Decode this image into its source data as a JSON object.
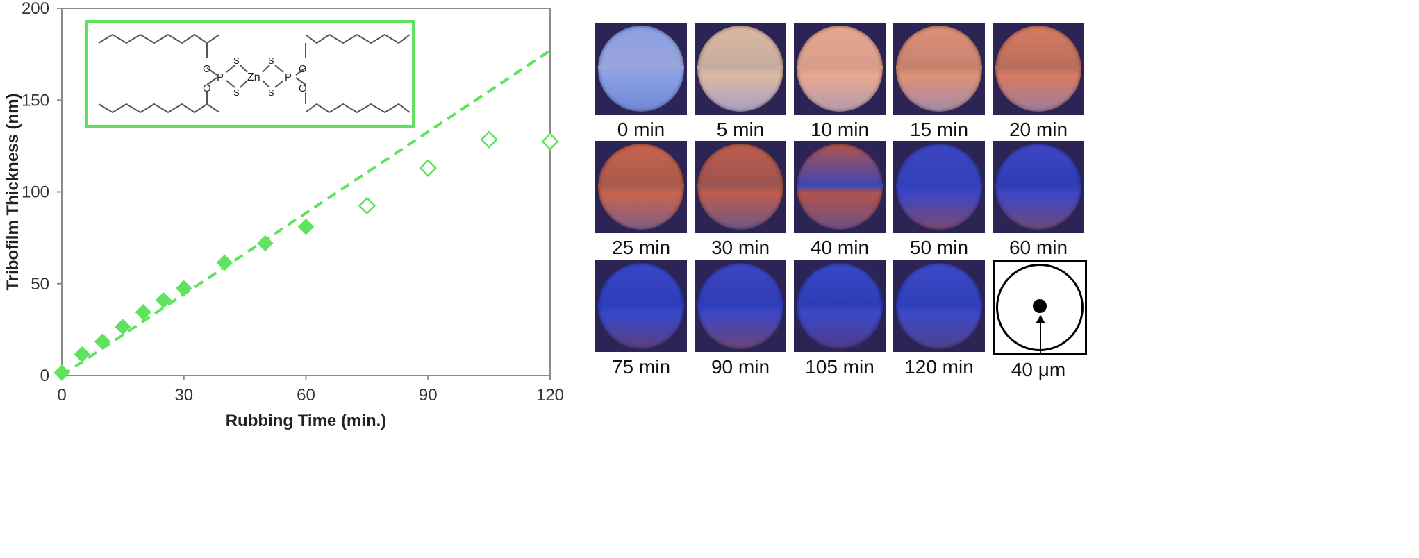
{
  "chart_data": {
    "type": "scatter",
    "title": "",
    "xlabel": "Rubbing Time (min.)",
    "ylabel": "Tribofilm Thickness (nm)",
    "xlim": [
      0,
      120
    ],
    "ylim": [
      0,
      200
    ],
    "x_ticks": [
      "0",
      "30",
      "60",
      "90",
      "120"
    ],
    "y_ticks": [
      "0",
      "50",
      "100",
      "150",
      "200"
    ],
    "grid": false,
    "legend": "none",
    "series": [
      {
        "marker": "filled-diamond",
        "color": "#5ee35e",
        "x": [
          0,
          5,
          10,
          15,
          20,
          25,
          30,
          40,
          50,
          60
        ],
        "y": [
          1.5,
          11.5,
          18.5,
          26.5,
          34.5,
          41,
          47.5,
          61.5,
          72,
          81
        ]
      },
      {
        "marker": "open-diamond",
        "color": "#5ee35e",
        "x": [
          75,
          90,
          105,
          120
        ],
        "y": [
          92.5,
          113,
          128.5,
          127.5
        ]
      },
      {
        "marker": "dashed-line",
        "color": "#5ee35e",
        "x": [
          0,
          120
        ],
        "y": [
          0,
          177
        ]
      }
    ]
  },
  "molecule": {
    "border_color": "#5ee35e",
    "atoms": {
      "o": "O",
      "s": "S",
      "p": "P",
      "zn": "Zn"
    }
  },
  "images": [
    {
      "caption": "0 min",
      "colors": [
        "#8aa0e6",
        "#9aa5da",
        "#6f86d6"
      ]
    },
    {
      "caption": "5 min",
      "colors": [
        "#dcb9a2",
        "#c7aaa0",
        "#a79fc4"
      ]
    },
    {
      "caption": "10 min",
      "colors": [
        "#e7a88f",
        "#d79d8b",
        "#b59bb0"
      ]
    },
    {
      "caption": "15 min",
      "colors": [
        "#de9177",
        "#c5826f",
        "#a58aa9"
      ]
    },
    {
      "caption": "20 min",
      "colors": [
        "#d97a62",
        "#b86f5d",
        "#9d7b9c"
      ]
    },
    {
      "caption": "25 min",
      "colors": [
        "#c9634e",
        "#a95a4c",
        "#7f5e86"
      ]
    },
    {
      "caption": "30 min",
      "colors": [
        "#bf5d4d",
        "#9c5350",
        "#6d5688"
      ]
    },
    {
      "caption": "40 min",
      "colors": [
        "#b1544c",
        "#3f47b4",
        "#6d4f86"
      ]
    },
    {
      "caption": "50 min",
      "colors": [
        "#3d45c4",
        "#3340b8",
        "#7b4a70"
      ]
    },
    {
      "caption": "60 min",
      "colors": [
        "#3e47c7",
        "#2f3cb3",
        "#6e4a78"
      ]
    },
    {
      "caption": "75 min",
      "colors": [
        "#3847c9",
        "#2d3eb8",
        "#5a3f80"
      ]
    },
    {
      "caption": "90 min",
      "colors": [
        "#3d47c4",
        "#2f3db6",
        "#6a4676"
      ]
    },
    {
      "caption": "105 min",
      "colors": [
        "#3a48c8",
        "#2e3db7",
        "#4f3b86"
      ]
    },
    {
      "caption": "120 min",
      "colors": [
        "#3c49c7",
        "#2f3fb9",
        "#50418a"
      ]
    }
  ],
  "scale": {
    "caption": "40 μm"
  }
}
